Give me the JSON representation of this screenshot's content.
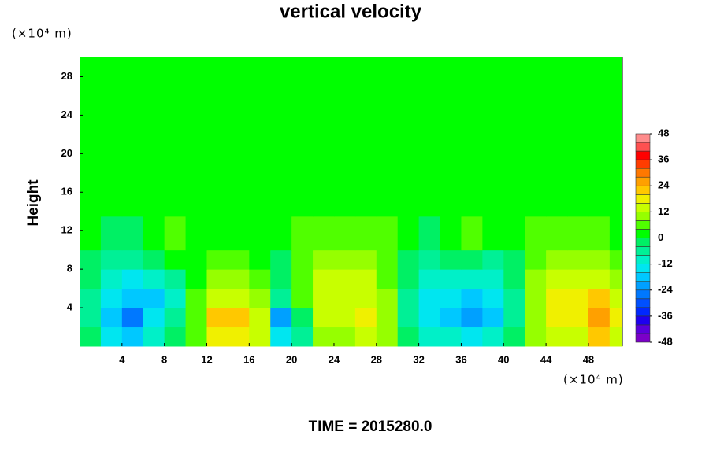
{
  "chart_data": {
    "type": "contour",
    "title": "vertical velocity",
    "y_label": "Height",
    "y_unit": "(×10⁴ m)",
    "x_unit": "(×10⁴ m)",
    "footer": "TIME = 2015280.0",
    "xlim": [
      0,
      51.2
    ],
    "ylim": [
      0,
      30
    ],
    "xticks": [
      4,
      8,
      12,
      16,
      20,
      24,
      28,
      32,
      36,
      40,
      44,
      48
    ],
    "yticks": [
      4,
      8,
      12,
      16,
      20,
      24,
      28
    ],
    "x": [
      1,
      3,
      5,
      7,
      9,
      11,
      13,
      15,
      17,
      19,
      21,
      23,
      25,
      27,
      29,
      31,
      33,
      35,
      37,
      39,
      41,
      43,
      45,
      47,
      49,
      51
    ],
    "y": [
      1,
      3,
      5,
      7,
      9,
      11,
      16,
      25
    ],
    "z": [
      [
        -4,
        -16,
        -20,
        -12,
        -4,
        4,
        16,
        18,
        12,
        -16,
        -8,
        8,
        8,
        12,
        8,
        -4,
        -12,
        -12,
        -16,
        -12,
        -4,
        8,
        12,
        12,
        20,
        12
      ],
      [
        -8,
        -20,
        -28,
        -16,
        -8,
        4,
        20,
        20,
        12,
        -24,
        -4,
        12,
        12,
        16,
        8,
        -8,
        -16,
        -20,
        -24,
        -20,
        -8,
        8,
        16,
        16,
        24,
        16
      ],
      [
        -8,
        -16,
        -20,
        -20,
        -12,
        4,
        12,
        12,
        8,
        -8,
        4,
        12,
        12,
        12,
        8,
        -8,
        -16,
        -16,
        -20,
        -16,
        -8,
        8,
        16,
        16,
        20,
        12
      ],
      [
        -4,
        -12,
        -16,
        -12,
        -8,
        0,
        8,
        8,
        4,
        -4,
        4,
        12,
        12,
        12,
        4,
        -4,
        -12,
        -12,
        -12,
        -12,
        -4,
        8,
        12,
        12,
        12,
        8
      ],
      [
        -4,
        -8,
        -8,
        -4,
        0,
        0,
        4,
        4,
        0,
        -4,
        4,
        8,
        8,
        8,
        4,
        -4,
        -8,
        -4,
        -4,
        -8,
        -4,
        4,
        8,
        8,
        8,
        4
      ],
      [
        0,
        -4,
        -4,
        0,
        4,
        0,
        0,
        0,
        0,
        0,
        4,
        4,
        4,
        4,
        4,
        0,
        -4,
        0,
        4,
        0,
        0,
        4,
        4,
        4,
        4,
        0
      ],
      [
        0,
        0,
        0,
        0,
        0,
        0,
        0,
        0,
        0,
        0,
        0,
        0,
        0,
        0,
        0,
        0,
        0,
        0,
        0,
        0,
        0,
        0,
        0,
        0,
        0,
        0
      ],
      [
        0,
        0,
        0,
        0,
        0,
        0,
        0,
        0,
        0,
        0,
        0,
        0,
        0,
        0,
        0,
        0,
        0,
        0,
        0,
        0,
        0,
        0,
        0,
        0,
        0,
        0
      ]
    ],
    "levels": [
      -48,
      -44,
      -40,
      -36,
      -32,
      -28,
      -24,
      -20,
      -16,
      -12,
      -8,
      -4,
      0,
      4,
      8,
      12,
      16,
      20,
      24,
      28,
      32,
      36,
      40,
      44,
      48
    ],
    "colors": [
      "#7b00c8",
      "#5a00dc",
      "#1e00f0",
      "#0028ff",
      "#0050ff",
      "#0078ff",
      "#00a0ff",
      "#00c8ff",
      "#00e6f0",
      "#00f0c8",
      "#00f096",
      "#00f064",
      "#00ff00",
      "#50ff00",
      "#96ff00",
      "#c8ff00",
      "#f0f000",
      "#ffc800",
      "#ffa000",
      "#ff7800",
      "#ff3c00",
      "#ff0000",
      "#ff5050",
      "#ff8c8c"
    ],
    "colorbar_ticks": [
      -48,
      -36,
      -24,
      -12,
      0,
      12,
      24,
      36,
      48
    ]
  }
}
